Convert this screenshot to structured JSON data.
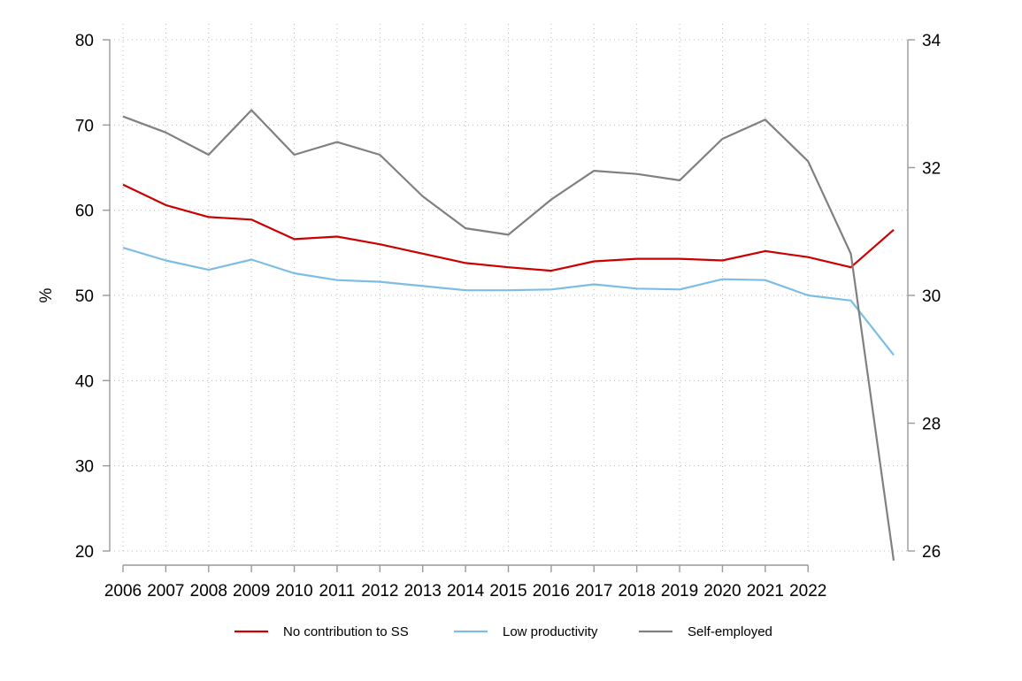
{
  "chart_data": {
    "type": "line",
    "title": "",
    "xlabel": "",
    "ylabel": "%",
    "y2label": "",
    "x": [
      2006,
      2007,
      2008,
      2009,
      2010,
      2011,
      2012,
      2013,
      2014,
      2015,
      2016,
      2017,
      2018,
      2019,
      2020,
      2021,
      2022
    ],
    "x_tick_labels": [
      "2006",
      "2007",
      "2008",
      "2009",
      "2010",
      "2011",
      "2012",
      "2013",
      "2014",
      "2015",
      "2016",
      "2017",
      "2018",
      "2019",
      "2020",
      "2021",
      "2022"
    ],
    "xlim": [
      2006,
      2024
    ],
    "ylim": [
      20,
      80
    ],
    "y_ticks": [
      20,
      30,
      40,
      50,
      60,
      70,
      80
    ],
    "y2lim": [
      26,
      34
    ],
    "y2_ticks": [
      26,
      28,
      30,
      32,
      34
    ],
    "grid": true,
    "legend_position": "bottom",
    "series": [
      {
        "name": "No contribution to SS",
        "axis": "left",
        "color": "#cc0000",
        "x": [
          2006,
          2007,
          2008,
          2009,
          2010,
          2011,
          2012,
          2013,
          2014,
          2015,
          2016,
          2017,
          2018,
          2019,
          2020,
          2021,
          2022,
          2023,
          2024
        ],
        "values": [
          63.0,
          60.6,
          59.2,
          58.9,
          56.6,
          56.9,
          56.0,
          54.9,
          53.8,
          53.3,
          52.9,
          54.0,
          54.3,
          54.3,
          54.1,
          55.2,
          54.5,
          53.3,
          57.7
        ]
      },
      {
        "name": "Low productivity",
        "axis": "left",
        "color": "#7cbde6",
        "x": [
          2006,
          2007,
          2008,
          2009,
          2010,
          2011,
          2012,
          2013,
          2014,
          2015,
          2016,
          2017,
          2018,
          2019,
          2020,
          2021,
          2022,
          2023,
          2024
        ],
        "values": [
          55.6,
          54.1,
          53.0,
          54.2,
          52.6,
          51.8,
          51.6,
          51.1,
          50.6,
          50.6,
          50.7,
          51.3,
          50.8,
          50.7,
          51.9,
          51.8,
          50.0,
          49.4,
          43.0
        ]
      },
      {
        "name": "Self-employed",
        "axis": "right",
        "color": "#808080",
        "x": [
          2006,
          2007,
          2008,
          2009,
          2010,
          2011,
          2012,
          2013,
          2014,
          2015,
          2016,
          2017,
          2018,
          2019,
          2020,
          2021,
          2022,
          2023,
          2024
        ],
        "values": [
          32.8,
          32.55,
          32.2,
          32.9,
          32.2,
          32.4,
          32.2,
          31.55,
          31.05,
          30.95,
          31.5,
          31.95,
          31.9,
          31.8,
          32.45,
          32.75,
          32.1,
          30.65,
          25.85
        ]
      }
    ]
  }
}
